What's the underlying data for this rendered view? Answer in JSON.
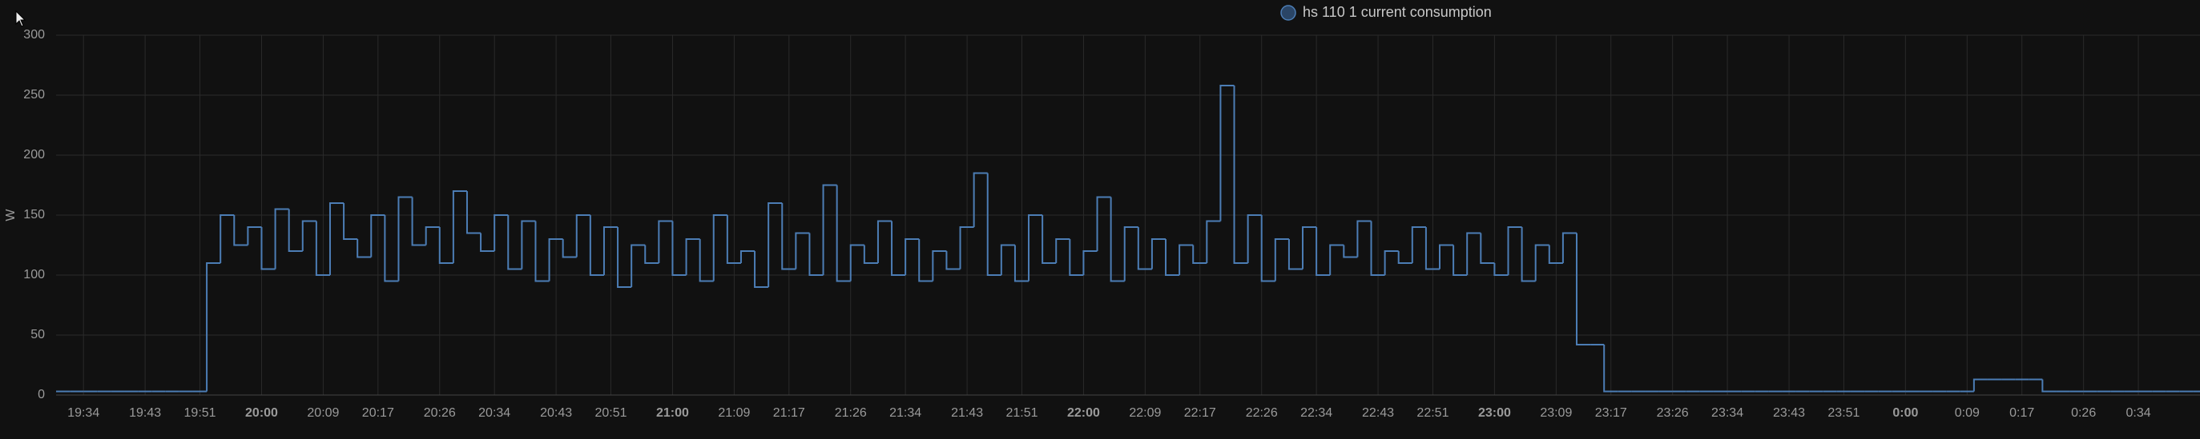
{
  "chart_data": {
    "type": "step",
    "series": [
      {
        "name": "hs 110 1 current consumption",
        "color": "#4c7db5",
        "x": [
          "19:30",
          "19:32",
          "19:34",
          "19:36",
          "19:38",
          "19:40",
          "19:42",
          "19:44",
          "19:46",
          "19:48",
          "19:50",
          "19:52",
          "19:54",
          "19:56",
          "19:58",
          "20:00",
          "20:02",
          "20:04",
          "20:06",
          "20:08",
          "20:10",
          "20:12",
          "20:14",
          "20:16",
          "20:18",
          "20:20",
          "20:22",
          "20:24",
          "20:26",
          "20:28",
          "20:30",
          "20:32",
          "20:34",
          "20:36",
          "20:38",
          "20:40",
          "20:42",
          "20:44",
          "20:46",
          "20:48",
          "20:50",
          "20:52",
          "20:54",
          "20:56",
          "20:58",
          "21:00",
          "21:02",
          "21:04",
          "21:06",
          "21:08",
          "21:10",
          "21:12",
          "21:14",
          "21:16",
          "21:18",
          "21:20",
          "21:22",
          "21:24",
          "21:26",
          "21:28",
          "21:30",
          "21:32",
          "21:34",
          "21:36",
          "21:38",
          "21:40",
          "21:42",
          "21:44",
          "21:46",
          "21:48",
          "21:50",
          "21:52",
          "21:54",
          "21:56",
          "21:58",
          "22:00",
          "22:02",
          "22:04",
          "22:06",
          "22:08",
          "22:10",
          "22:12",
          "22:14",
          "22:16",
          "22:18",
          "22:20",
          "22:22",
          "22:24",
          "22:26",
          "22:28",
          "22:30",
          "22:32",
          "22:34",
          "22:36",
          "22:38",
          "22:40",
          "22:42",
          "22:44",
          "22:46",
          "22:48",
          "22:50",
          "22:52",
          "22:54",
          "22:56",
          "22:58",
          "23:00",
          "23:02",
          "23:04",
          "23:06",
          "23:08",
          "23:10",
          "23:12",
          "23:14",
          "23:16",
          "23:18",
          "23:20",
          "23:22",
          "23:24",
          "23:26",
          "23:28",
          "23:30",
          "23:32",
          "23:34",
          "23:36",
          "23:38",
          "23:40",
          "23:42",
          "23:44",
          "23:46",
          "23:48",
          "23:50",
          "23:52",
          "23:54",
          "23:56",
          "23:58",
          "0:00",
          "0:02",
          "0:04",
          "0:06",
          "0:08",
          "0:10",
          "0:12",
          "0:14",
          "0:16",
          "0:18",
          "0:20",
          "0:22",
          "0:24",
          "0:26",
          "0:28",
          "0:30",
          "0:32",
          "0:34",
          "0:36",
          "0:38",
          "0:40",
          "0:42"
        ],
        "values": [
          3,
          3,
          3,
          3,
          3,
          3,
          3,
          3,
          3,
          3,
          3,
          110,
          150,
          125,
          140,
          105,
          155,
          120,
          145,
          100,
          160,
          130,
          115,
          150,
          95,
          165,
          125,
          140,
          110,
          170,
          135,
          120,
          150,
          105,
          145,
          95,
          130,
          115,
          150,
          100,
          140,
          90,
          125,
          110,
          145,
          100,
          130,
          95,
          150,
          110,
          120,
          90,
          160,
          105,
          135,
          100,
          175,
          95,
          125,
          110,
          145,
          100,
          130,
          95,
          120,
          105,
          140,
          185,
          100,
          125,
          95,
          150,
          110,
          130,
          100,
          120,
          165,
          95,
          140,
          105,
          130,
          100,
          125,
          110,
          145,
          258,
          110,
          150,
          95,
          130,
          105,
          140,
          100,
          125,
          115,
          145,
          100,
          120,
          110,
          140,
          105,
          125,
          100,
          135,
          110,
          100,
          140,
          95,
          125,
          110,
          135,
          42,
          42,
          3,
          3,
          3,
          3,
          3,
          3,
          3,
          3,
          3,
          3,
          3,
          3,
          3,
          3,
          3,
          3,
          3,
          3,
          3,
          3,
          3,
          3,
          3,
          3,
          3,
          3,
          3,
          13,
          13,
          13,
          13,
          13,
          3,
          3,
          3,
          3,
          3,
          3,
          3,
          3,
          3,
          3,
          3,
          3
        ]
      }
    ],
    "y_label": "W",
    "xlim": [
      "19:30",
      "0:43"
    ],
    "xticks": [
      "19:34",
      "19:43",
      "19:51",
      "20:00",
      "20:09",
      "20:17",
      "20:26",
      "20:34",
      "20:43",
      "20:51",
      "21:00",
      "21:09",
      "21:17",
      "21:26",
      "21:34",
      "21:43",
      "21:51",
      "22:00",
      "22:09",
      "22:17",
      "22:26",
      "22:34",
      "22:43",
      "22:51",
      "23:00",
      "23:09",
      "23:17",
      "23:26",
      "23:34",
      "23:43",
      "23:51",
      "0:00",
      "0:09",
      "0:17",
      "0:26",
      "0:34"
    ],
    "ylim": [
      0,
      300
    ],
    "yticks": [
      0,
      50,
      100,
      150,
      200,
      250,
      300
    ],
    "grid": true
  }
}
